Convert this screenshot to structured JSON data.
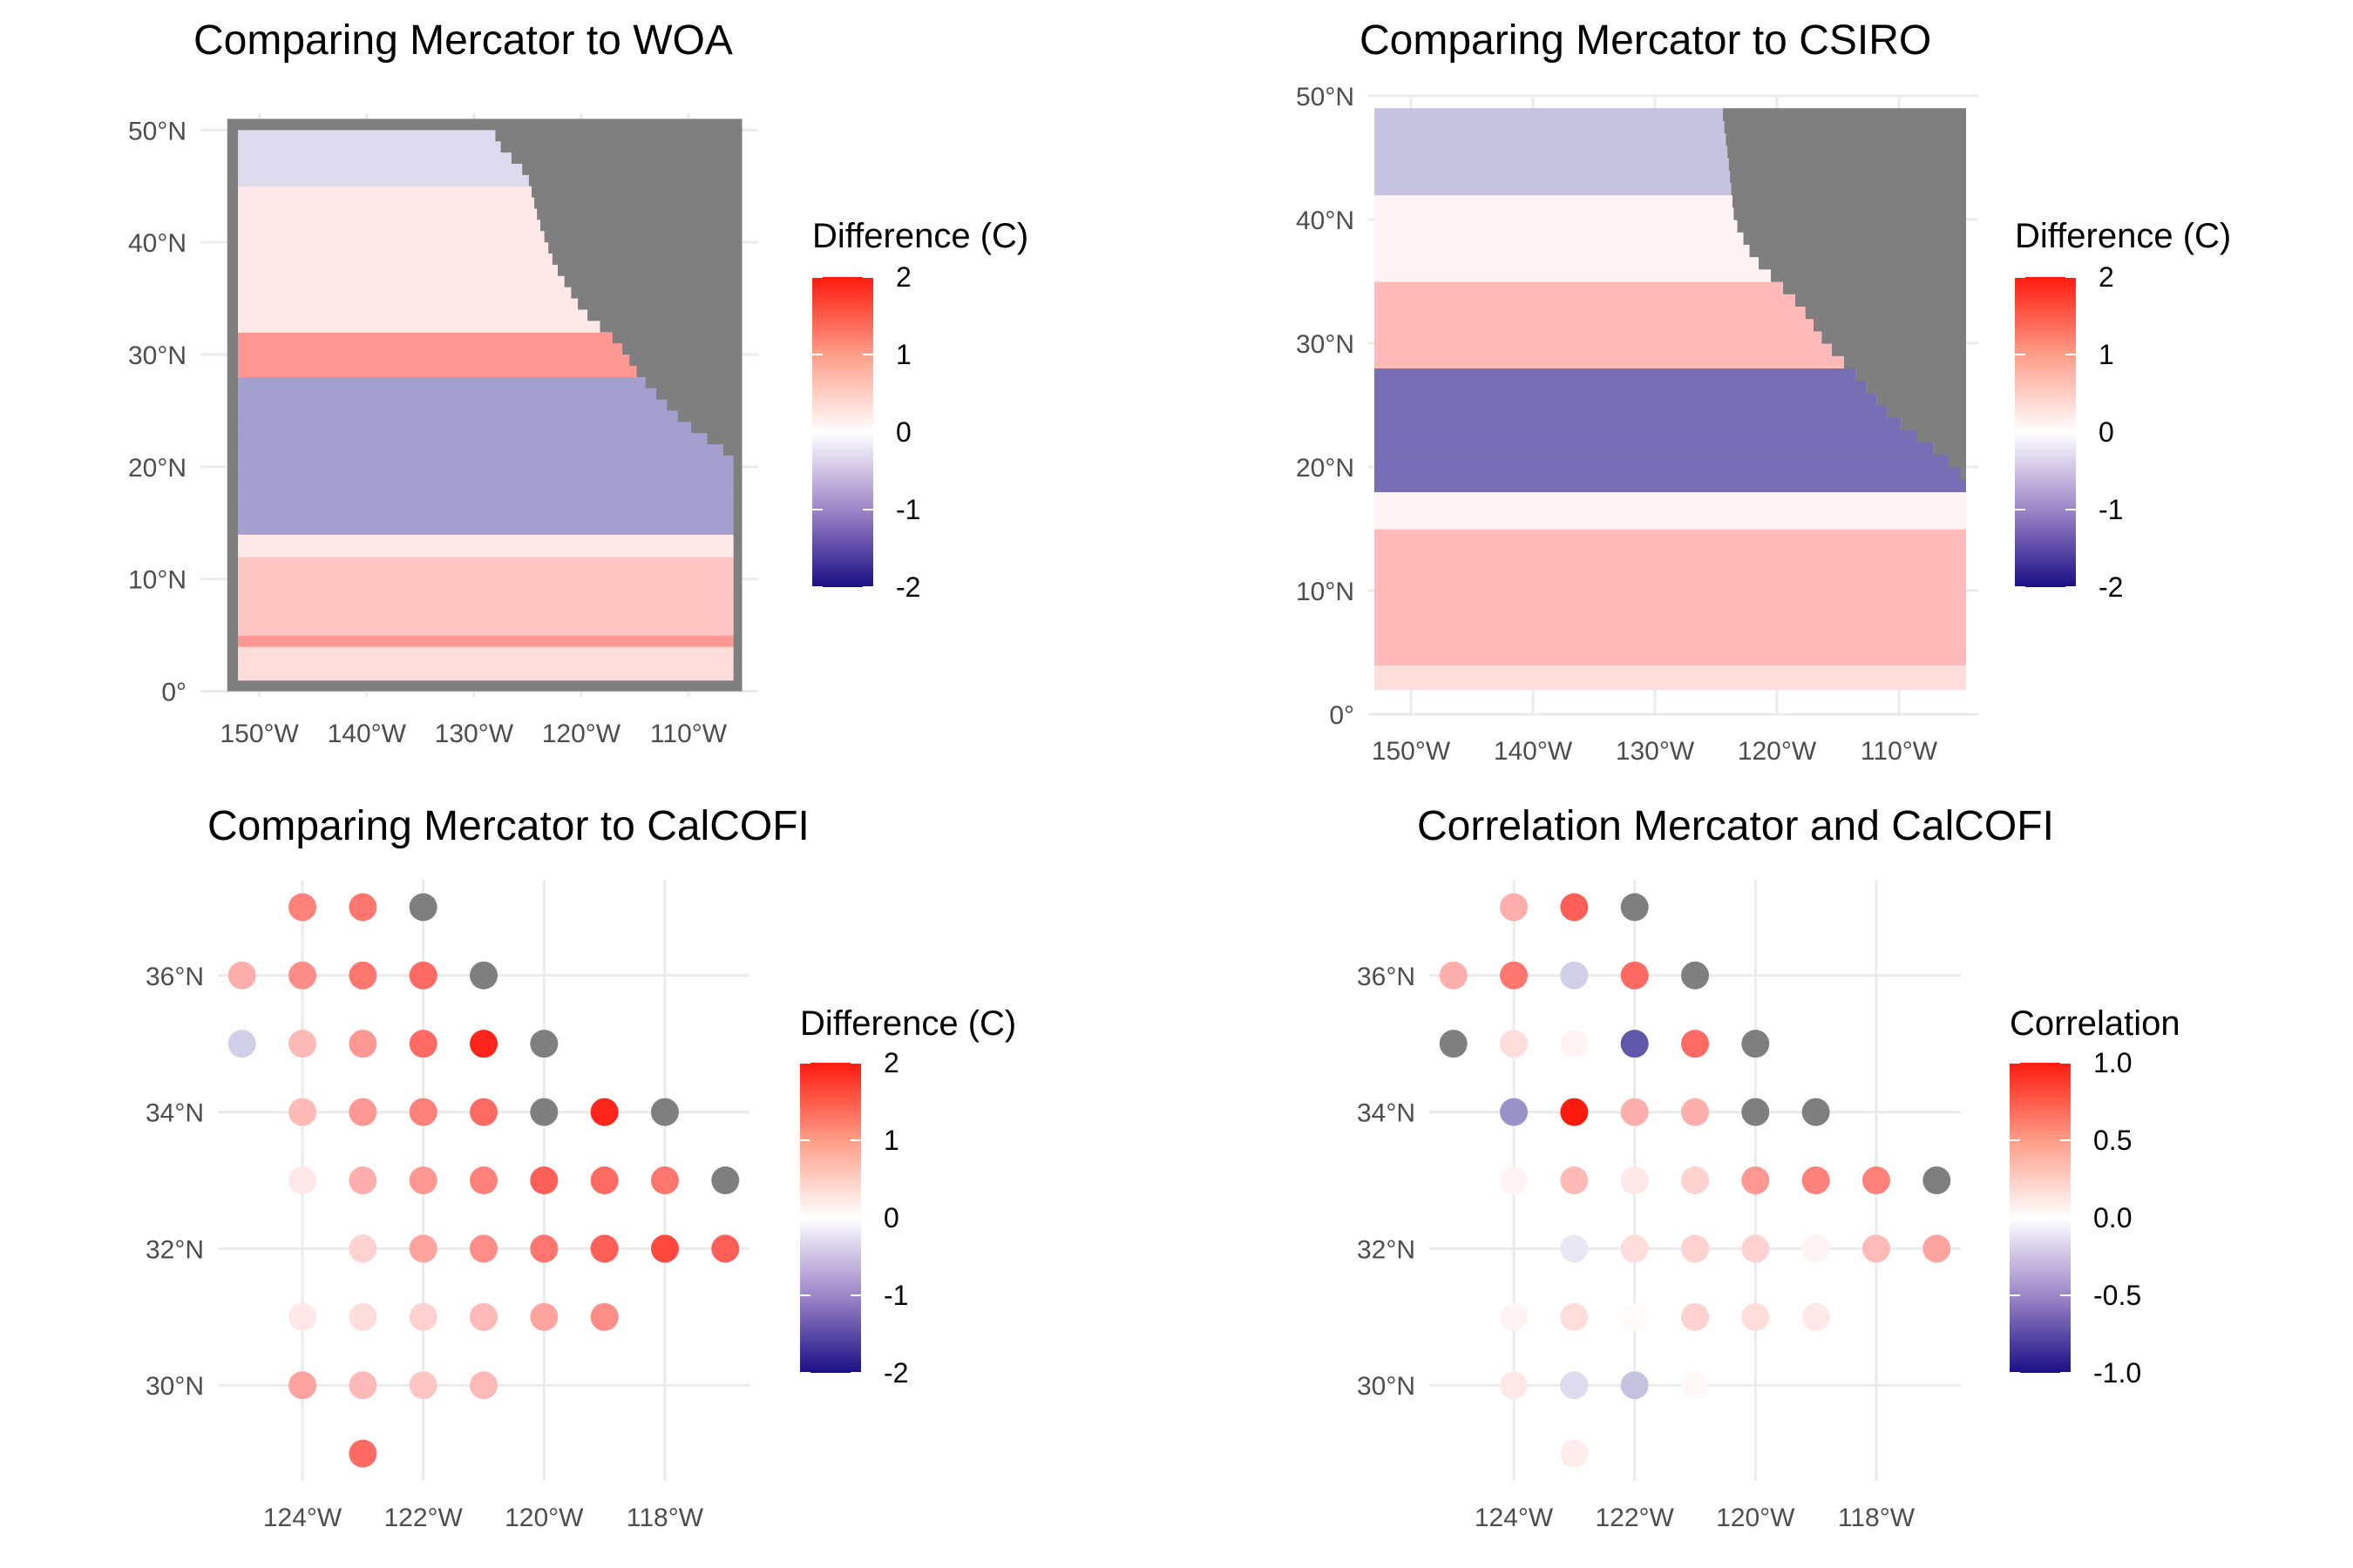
{
  "colors": {
    "low": "#1a0f86",
    "mid": "#ffffff",
    "high": "#ff1a0e",
    "na": "#7f7f7f",
    "grid": "#ebebeb"
  },
  "chart_data": [
    {
      "id": "woa",
      "type": "heatmap",
      "title": "Comparing Mercator to WOA",
      "xlabel": "",
      "ylabel": "",
      "xlim": [
        -155.5,
        -103.5
      ],
      "ylim": [
        -0.5,
        51.5
      ],
      "x_ticks": [
        {
          "value": -150,
          "label": "150°W"
        },
        {
          "value": -140,
          "label": "140°W"
        },
        {
          "value": -130,
          "label": "130°W"
        },
        {
          "value": -120,
          "label": "120°W"
        },
        {
          "value": -110,
          "label": "110°W"
        }
      ],
      "y_ticks": [
        {
          "value": 0,
          "label": "0°"
        },
        {
          "value": 10,
          "label": "10°N"
        },
        {
          "value": 20,
          "label": "20°N"
        },
        {
          "value": 30,
          "label": "30°N"
        },
        {
          "value": 40,
          "label": "40°N"
        },
        {
          "value": 50,
          "label": "50°N"
        }
      ],
      "grid_extent": {
        "lon": [
          -153,
          -105
        ],
        "lat": [
          0,
          51
        ]
      },
      "land_coast": [
        [
          49,
          -128
        ],
        [
          46,
          -125
        ],
        [
          42,
          -124
        ],
        [
          38,
          -122.5
        ],
        [
          34,
          -120
        ],
        [
          31,
          -116.5
        ],
        [
          28,
          -114.5
        ],
        [
          24,
          -110.5
        ],
        [
          21,
          -106
        ],
        [
          19,
          -105
        ]
      ],
      "field_bands": [
        {
          "lat": [
            0,
            1
          ],
          "value": 0.0
        },
        {
          "lat": [
            1,
            4
          ],
          "value": 0.3
        },
        {
          "lat": [
            4,
            5
          ],
          "value": 0.9
        },
        {
          "lat": [
            5,
            12
          ],
          "value": 0.5
        },
        {
          "lat": [
            12,
            14
          ],
          "value": 0.2
        },
        {
          "lat": [
            14,
            28
          ],
          "value": -0.8
        },
        {
          "lat": [
            28,
            32
          ],
          "value": 0.9
        },
        {
          "lat": [
            32,
            45
          ],
          "value": 0.2
        },
        {
          "lat": [
            45,
            51
          ],
          "value": -0.3
        }
      ],
      "legend": {
        "title": "Difference (C)",
        "ticks": [
          2,
          1,
          0,
          -1,
          -2
        ],
        "labels": [
          "2",
          "1",
          "0",
          "-1",
          "-2"
        ],
        "range": [
          -2,
          2
        ],
        "position": "right"
      }
    },
    {
      "id": "csiro",
      "type": "heatmap",
      "title": "Comparing Mercator to CSIRO",
      "xlabel": "",
      "ylabel": "",
      "xlim": [
        -153.5,
        -103.5
      ],
      "ylim": [
        0,
        50
      ],
      "x_ticks": [
        {
          "value": -150,
          "label": "150°W"
        },
        {
          "value": -140,
          "label": "140°W"
        },
        {
          "value": -130,
          "label": "130°W"
        },
        {
          "value": -120,
          "label": "120°W"
        },
        {
          "value": -110,
          "label": "110°W"
        }
      ],
      "y_ticks": [
        {
          "value": 0,
          "label": "0°"
        },
        {
          "value": 10,
          "label": "10°N"
        },
        {
          "value": 20,
          "label": "20°N"
        },
        {
          "value": 30,
          "label": "30°N"
        },
        {
          "value": 40,
          "label": "40°N"
        },
        {
          "value": 50,
          "label": "50°N"
        }
      ],
      "grid_extent": {
        "lon": [
          -153,
          -104.5
        ],
        "lat": [
          2,
          49
        ]
      },
      "land_coast": [
        [
          49,
          -124.5
        ],
        [
          45,
          -124
        ],
        [
          40,
          -123.5
        ],
        [
          37,
          -122
        ],
        [
          33,
          -118
        ],
        [
          30,
          -116
        ],
        [
          28,
          -114
        ],
        [
          24,
          -110.5
        ],
        [
          21,
          -106.5
        ],
        [
          19,
          -104.5
        ]
      ],
      "field_bands": [
        {
          "lat": [
            2,
            4
          ],
          "value": 0.3
        },
        {
          "lat": [
            4,
            15
          ],
          "value": 0.6
        },
        {
          "lat": [
            15,
            18
          ],
          "value": 0.1
        },
        {
          "lat": [
            18,
            28
          ],
          "value": -1.2
        },
        {
          "lat": [
            28,
            35
          ],
          "value": 0.6
        },
        {
          "lat": [
            35,
            42
          ],
          "value": 0.1
        },
        {
          "lat": [
            42,
            49
          ],
          "value": -0.5
        }
      ],
      "legend": {
        "title": "Difference (C)",
        "ticks": [
          2,
          1,
          0,
          -1,
          -2
        ],
        "labels": [
          "2",
          "1",
          "0",
          "-1",
          "-2"
        ],
        "range": [
          -2,
          2
        ],
        "position": "right"
      }
    },
    {
      "id": "calcofi",
      "type": "scatter",
      "title": "Comparing Mercator to CalCOFI",
      "xlabel": "",
      "ylabel": "",
      "xlim": [
        -125.4,
        -116.6
      ],
      "ylim": [
        28.6,
        37.4
      ],
      "x_ticks": [
        {
          "value": -124,
          "label": "124°W"
        },
        {
          "value": -122,
          "label": "122°W"
        },
        {
          "value": -120,
          "label": "120°W"
        },
        {
          "value": -118,
          "label": "118°W"
        }
      ],
      "y_ticks": [
        {
          "value": 30,
          "label": "30°N"
        },
        {
          "value": 32,
          "label": "32°N"
        },
        {
          "value": 34,
          "label": "34°N"
        },
        {
          "value": 36,
          "label": "36°N"
        }
      ],
      "points": [
        {
          "lon": -124,
          "lat": 37,
          "value": 1.1
        },
        {
          "lon": -123,
          "lat": 37,
          "value": 1.2
        },
        {
          "lon": -122,
          "lat": 37,
          "value": null
        },
        {
          "lon": -125,
          "lat": 36,
          "value": 0.7
        },
        {
          "lon": -124,
          "lat": 36,
          "value": 1.0
        },
        {
          "lon": -123,
          "lat": 36,
          "value": 1.2
        },
        {
          "lon": -122,
          "lat": 36,
          "value": 1.3
        },
        {
          "lon": -121,
          "lat": 36,
          "value": null
        },
        {
          "lon": -125,
          "lat": 35,
          "value": -0.4
        },
        {
          "lon": -124,
          "lat": 35,
          "value": 0.6
        },
        {
          "lon": -123,
          "lat": 35,
          "value": 0.9
        },
        {
          "lon": -122,
          "lat": 35,
          "value": 1.3
        },
        {
          "lon": -121,
          "lat": 35,
          "value": 1.9
        },
        {
          "lon": -120,
          "lat": 35,
          "value": null
        },
        {
          "lon": -124,
          "lat": 34,
          "value": 0.6
        },
        {
          "lon": -123,
          "lat": 34,
          "value": 0.9
        },
        {
          "lon": -122,
          "lat": 34,
          "value": 1.1
        },
        {
          "lon": -121,
          "lat": 34,
          "value": 1.3
        },
        {
          "lon": -120,
          "lat": 34,
          "value": null
        },
        {
          "lon": -119,
          "lat": 34,
          "value": 1.9
        },
        {
          "lon": -118,
          "lat": 34,
          "value": null
        },
        {
          "lon": -124,
          "lat": 33,
          "value": 0.2
        },
        {
          "lon": -123,
          "lat": 33,
          "value": 0.7
        },
        {
          "lon": -122,
          "lat": 33,
          "value": 0.9
        },
        {
          "lon": -121,
          "lat": 33,
          "value": 1.1
        },
        {
          "lon": -120,
          "lat": 33,
          "value": 1.4
        },
        {
          "lon": -119,
          "lat": 33,
          "value": 1.3
        },
        {
          "lon": -118,
          "lat": 33,
          "value": 1.2
        },
        {
          "lon": -117,
          "lat": 33,
          "value": null
        },
        {
          "lon": -123,
          "lat": 32,
          "value": 0.4
        },
        {
          "lon": -122,
          "lat": 32,
          "value": 0.8
        },
        {
          "lon": -121,
          "lat": 32,
          "value": 1.0
        },
        {
          "lon": -120,
          "lat": 32,
          "value": 1.2
        },
        {
          "lon": -119,
          "lat": 32,
          "value": 1.4
        },
        {
          "lon": -118,
          "lat": 32,
          "value": 1.6
        },
        {
          "lon": -117,
          "lat": 32,
          "value": 1.4
        },
        {
          "lon": -124,
          "lat": 31,
          "value": 0.2
        },
        {
          "lon": -123,
          "lat": 31,
          "value": 0.3
        },
        {
          "lon": -122,
          "lat": 31,
          "value": 0.4
        },
        {
          "lon": -121,
          "lat": 31,
          "value": 0.6
        },
        {
          "lon": -120,
          "lat": 31,
          "value": 0.8
        },
        {
          "lon": -119,
          "lat": 31,
          "value": 1.0
        },
        {
          "lon": -124,
          "lat": 30,
          "value": 0.8
        },
        {
          "lon": -123,
          "lat": 30,
          "value": 0.6
        },
        {
          "lon": -122,
          "lat": 30,
          "value": 0.5
        },
        {
          "lon": -121,
          "lat": 30,
          "value": 0.6
        },
        {
          "lon": -123,
          "lat": 29,
          "value": 1.3
        }
      ],
      "legend": {
        "title": "Difference (C)",
        "ticks": [
          2,
          1,
          0,
          -1,
          -2
        ],
        "labels": [
          "2",
          "1",
          "0",
          "-1",
          "-2"
        ],
        "range": [
          -2,
          2
        ],
        "position": "right"
      }
    },
    {
      "id": "corr",
      "type": "scatter",
      "title": "Correlation Mercator and CalCOFI",
      "xlabel": "",
      "ylabel": "",
      "xlim": [
        -125.4,
        -116.6
      ],
      "ylim": [
        28.6,
        37.4
      ],
      "x_ticks": [
        {
          "value": -124,
          "label": "124°W"
        },
        {
          "value": -122,
          "label": "122°W"
        },
        {
          "value": -120,
          "label": "120°W"
        },
        {
          "value": -118,
          "label": "118°W"
        }
      ],
      "y_ticks": [
        {
          "value": 30,
          "label": "30°N"
        },
        {
          "value": 32,
          "label": "32°N"
        },
        {
          "value": 34,
          "label": "34°N"
        },
        {
          "value": 36,
          "label": "36°N"
        }
      ],
      "points": [
        {
          "lon": -124,
          "lat": 37,
          "value": 0.35
        },
        {
          "lon": -123,
          "lat": 37,
          "value": 0.7
        },
        {
          "lon": -122,
          "lat": 37,
          "value": null
        },
        {
          "lon": -125,
          "lat": 36,
          "value": 0.35
        },
        {
          "lon": -124,
          "lat": 36,
          "value": 0.6
        },
        {
          "lon": -123,
          "lat": 36,
          "value": -0.2
        },
        {
          "lon": -122,
          "lat": 36,
          "value": 0.65
        },
        {
          "lon": -121,
          "lat": 36,
          "value": null
        },
        {
          "lon": -125,
          "lat": 35,
          "value": null
        },
        {
          "lon": -124,
          "lat": 35,
          "value": 0.15
        },
        {
          "lon": -123,
          "lat": 35,
          "value": 0.05
        },
        {
          "lon": -122,
          "lat": 35,
          "value": -0.7
        },
        {
          "lon": -121,
          "lat": 35,
          "value": 0.65
        },
        {
          "lon": -120,
          "lat": 35,
          "value": null
        },
        {
          "lon": -124,
          "lat": 34,
          "value": -0.45
        },
        {
          "lon": -123,
          "lat": 34,
          "value": 1.0
        },
        {
          "lon": -122,
          "lat": 34,
          "value": 0.35
        },
        {
          "lon": -121,
          "lat": 34,
          "value": 0.35
        },
        {
          "lon": -120,
          "lat": 34,
          "value": null
        },
        {
          "lon": -119,
          "lat": 34,
          "value": null
        },
        {
          "lon": -124,
          "lat": 33,
          "value": 0.05
        },
        {
          "lon": -123,
          "lat": 33,
          "value": 0.3
        },
        {
          "lon": -122,
          "lat": 33,
          "value": 0.1
        },
        {
          "lon": -121,
          "lat": 33,
          "value": 0.2
        },
        {
          "lon": -120,
          "lat": 33,
          "value": 0.45
        },
        {
          "lon": -119,
          "lat": 33,
          "value": 0.55
        },
        {
          "lon": -118,
          "lat": 33,
          "value": 0.55
        },
        {
          "lon": -117,
          "lat": 33,
          "value": null
        },
        {
          "lon": -123,
          "lat": 32,
          "value": -0.1
        },
        {
          "lon": -122,
          "lat": 32,
          "value": 0.15
        },
        {
          "lon": -121,
          "lat": 32,
          "value": 0.2
        },
        {
          "lon": -120,
          "lat": 32,
          "value": 0.2
        },
        {
          "lon": -119,
          "lat": 32,
          "value": 0.05
        },
        {
          "lon": -118,
          "lat": 32,
          "value": 0.3
        },
        {
          "lon": -117,
          "lat": 32,
          "value": 0.4
        },
        {
          "lon": -124,
          "lat": 31,
          "value": 0.05
        },
        {
          "lon": -123,
          "lat": 31,
          "value": 0.15
        },
        {
          "lon": -122,
          "lat": 31,
          "value": 0.02
        },
        {
          "lon": -121,
          "lat": 31,
          "value": 0.2
        },
        {
          "lon": -120,
          "lat": 31,
          "value": 0.15
        },
        {
          "lon": -119,
          "lat": 31,
          "value": 0.1
        },
        {
          "lon": -124,
          "lat": 30,
          "value": 0.1
        },
        {
          "lon": -123,
          "lat": 30,
          "value": -0.15
        },
        {
          "lon": -122,
          "lat": 30,
          "value": -0.25
        },
        {
          "lon": -121,
          "lat": 30,
          "value": 0.03
        },
        {
          "lon": -123,
          "lat": 29,
          "value": 0.08
        }
      ],
      "legend": {
        "title": "Correlation",
        "ticks": [
          1.0,
          0.5,
          0.0,
          -0.5,
          -1.0
        ],
        "labels": [
          "1.0",
          "0.5",
          "0.0",
          "-0.5",
          "-1.0"
        ],
        "range": [
          -1,
          1
        ],
        "position": "right"
      }
    }
  ]
}
